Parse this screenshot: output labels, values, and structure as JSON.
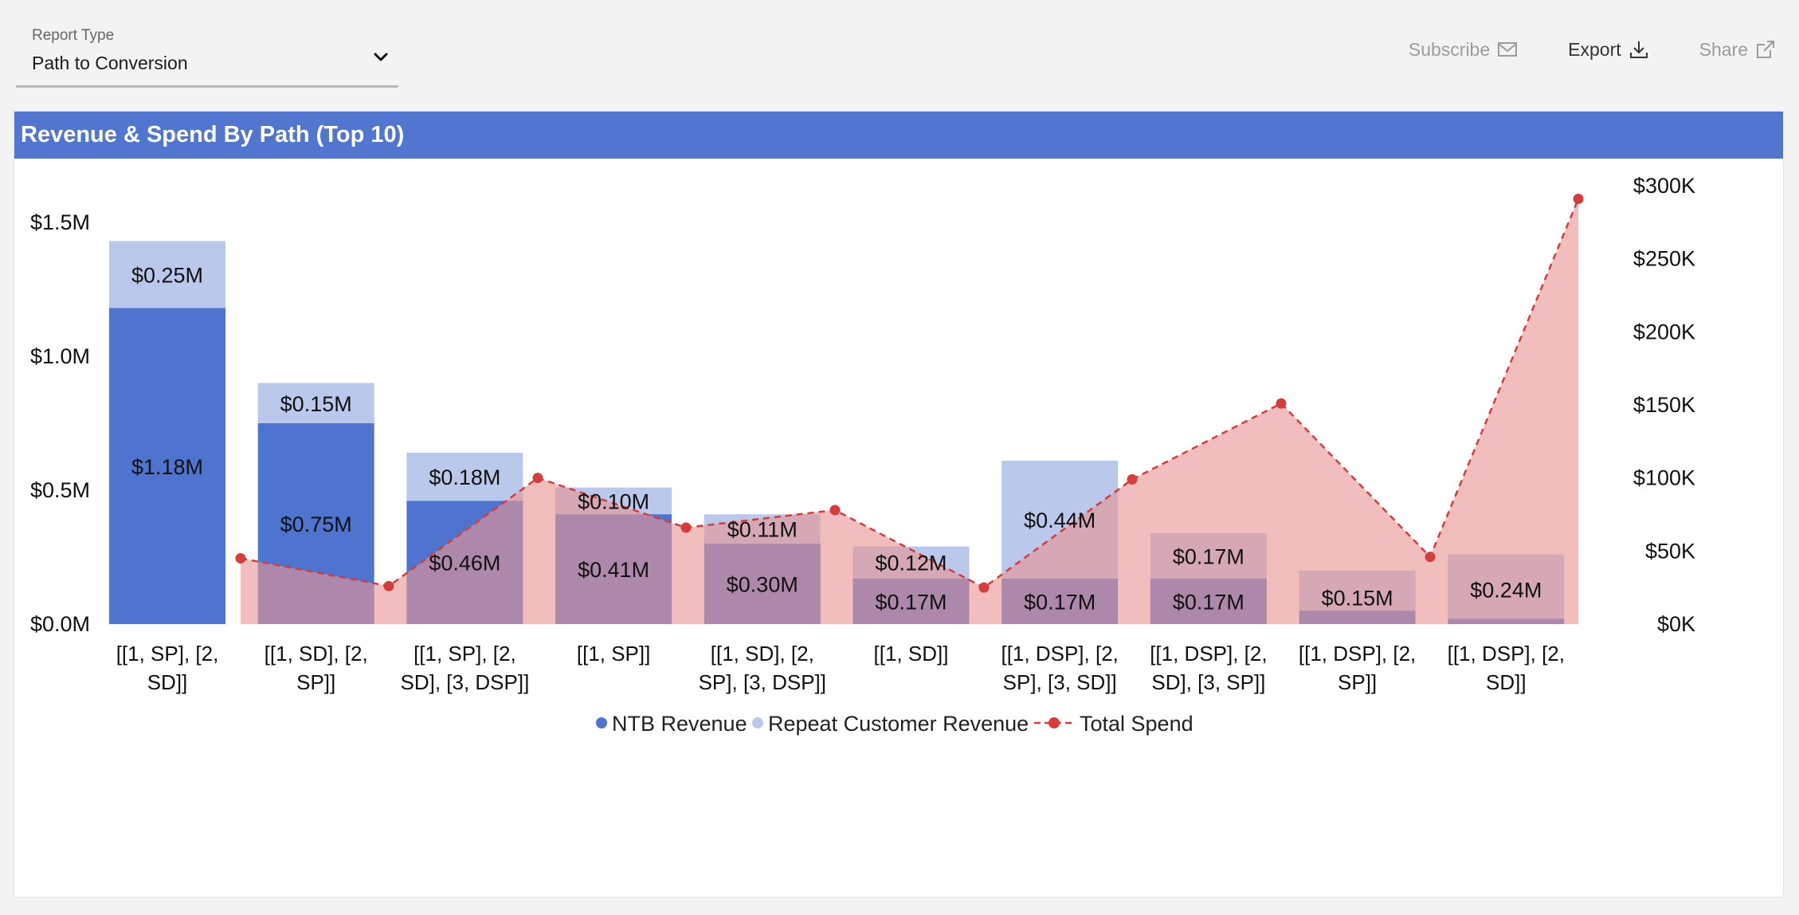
{
  "header": {
    "report_type_label": "Report Type",
    "report_type_value": "Path to Conversion",
    "actions": [
      {
        "label": "Subscribe",
        "icon": "mail-icon",
        "enabled": false
      },
      {
        "label": "Export",
        "icon": "download-icon",
        "enabled": true
      },
      {
        "label": "Share",
        "icon": "external-link-icon",
        "enabled": false
      }
    ]
  },
  "panel": {
    "title": "Revenue & Spend By Path (Top 10)"
  },
  "colors": {
    "header_bg": "#5176cf",
    "ntb": "#4e74cf",
    "repeat": "#b9c8eb",
    "spend_area": "#e99494",
    "spend_line": "#d63c3c"
  },
  "chart_data": {
    "type": "bar",
    "stacked": true,
    "title": "Revenue & Spend By Path (Top 10)",
    "categories": [
      [
        "[[1, SP], [2,",
        "SD]]"
      ],
      [
        "[[1, SD], [2,",
        "SP]]"
      ],
      [
        "[[1, SP], [2,",
        "SD], [3, DSP]]"
      ],
      [
        "[[1, SP]]"
      ],
      [
        "[[1, SD], [2,",
        "SP], [3, DSP]]"
      ],
      [
        "[[1, SD]]"
      ],
      [
        "[[1, DSP], [2,",
        "SP], [3, SD]]"
      ],
      [
        "[[1, DSP], [2,",
        "SD], [3, SP]]"
      ],
      [
        "[[1, DSP], [2,",
        "SP]]"
      ],
      [
        "[[1, DSP], [2,",
        "SD]]"
      ]
    ],
    "y_left": {
      "ticks": [
        "$0.0M",
        "$0.5M",
        "$1.0M",
        "$1.5M"
      ],
      "tick_values": [
        0,
        0.5,
        1.0,
        1.5
      ],
      "range": [
        0,
        1.5
      ],
      "unit": "M"
    },
    "y_right": {
      "ticks": [
        "$0K",
        "$50K",
        "$100K",
        "$150K",
        "$200K",
        "$250K",
        "$300K"
      ],
      "tick_values": [
        0,
        50,
        100,
        150,
        200,
        250,
        300
      ],
      "range": [
        0,
        300
      ],
      "unit": "K"
    },
    "series": [
      {
        "name": "NTB Revenue",
        "kind": "bar",
        "axis": "left",
        "color": "#4e74cf",
        "values": [
          1.18,
          0.75,
          0.46,
          0.41,
          0.3,
          0.17,
          0.17,
          0.17,
          0.05,
          0.02
        ],
        "labels": [
          "$1.18M",
          "$0.75M",
          "$0.46M",
          "$0.41M",
          "$0.30M",
          "$0.17M",
          "$0.17M",
          "$0.17M",
          "",
          ""
        ]
      },
      {
        "name": "Repeat Customer Revenue",
        "kind": "bar",
        "axis": "left",
        "color": "#b9c8eb",
        "values": [
          0.25,
          0.15,
          0.18,
          0.1,
          0.11,
          0.12,
          0.44,
          0.17,
          0.15,
          0.24
        ],
        "labels": [
          "$0.25M",
          "$0.15M",
          "$0.18M",
          "$0.10M",
          "$0.11M",
          "$0.12M",
          "$0.44M",
          "$0.17M",
          "$0.15M",
          "$0.24M"
        ]
      },
      {
        "name": "Total Spend",
        "kind": "line-area",
        "axis": "right",
        "color": "#d63c3c",
        "values": [
          45,
          26,
          100,
          66,
          78,
          25,
          99,
          151,
          46,
          291
        ]
      }
    ],
    "legend_position": "bottom-center",
    "grid": false
  }
}
